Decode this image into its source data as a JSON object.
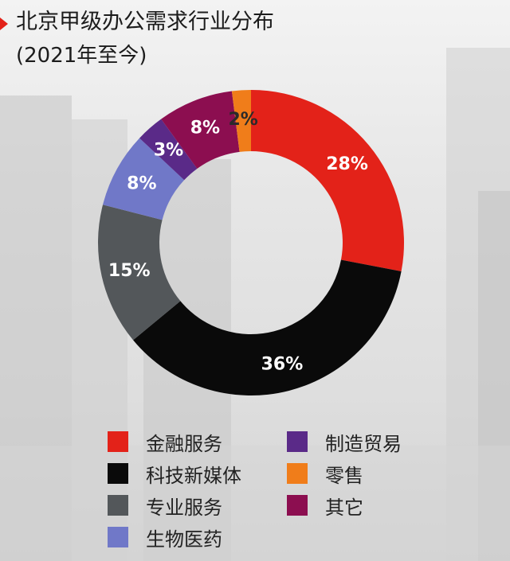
{
  "header": {
    "title": "北京甲级办公需求行业分布",
    "subtitle": "(2021年至今)"
  },
  "colors": {
    "accent": "#e32219"
  },
  "chart_data": {
    "type": "pie",
    "donut": true,
    "categories": [
      "金融服务",
      "科技新媒体",
      "专业服务",
      "生物医药",
      "制造贸易",
      "零售",
      "其它"
    ],
    "values": [
      28,
      36,
      15,
      8,
      3,
      2,
      8
    ],
    "labels": [
      "28%",
      "36%",
      "15%",
      "8%",
      "3%",
      "2%",
      "8%"
    ],
    "colors": [
      "#e32219",
      "#0a0a0a",
      "#53575a",
      "#7078c8",
      "#5a2a88",
      "#f07d1a",
      "#8c0e50"
    ],
    "slice_order": [
      0,
      1,
      2,
      3,
      4,
      6,
      5
    ],
    "legend_position": "bottom"
  },
  "legend": {
    "items": [
      {
        "label": "金融服务",
        "color": "#e32219"
      },
      {
        "label": "科技新媒体",
        "color": "#0a0a0a"
      },
      {
        "label": "专业服务",
        "color": "#53575a"
      },
      {
        "label": "生物医药",
        "color": "#7078c8"
      },
      {
        "label": "制造贸易",
        "color": "#5a2a88"
      },
      {
        "label": "零售",
        "color": "#f07d1a"
      },
      {
        "label": "其它",
        "color": "#8c0e50"
      }
    ]
  }
}
